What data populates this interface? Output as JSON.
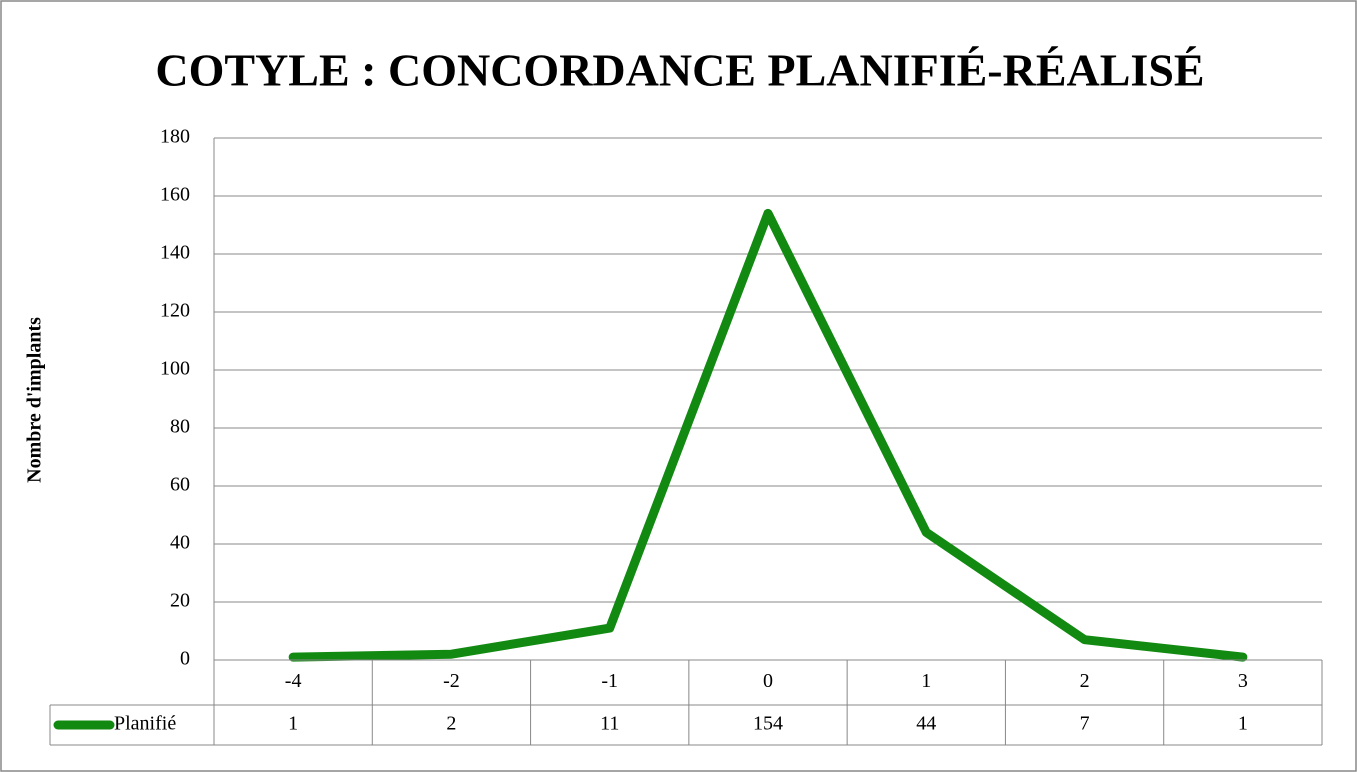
{
  "chart_data": {
    "type": "line",
    "title": "COTYLE : CONCORDANCE PLANIFIÉ-RÉALISÉ",
    "y_label": "Nombre d'implants",
    "categories": [
      "-4",
      "-2",
      "-1",
      "0",
      "1",
      "2",
      "3"
    ],
    "series": [
      {
        "name": "Planifié",
        "color": "#128a12",
        "values": [
          1,
          2,
          11,
          154,
          44,
          7,
          1
        ]
      }
    ],
    "ylim": [
      0,
      180
    ],
    "yticks": [
      0,
      20,
      40,
      60,
      80,
      100,
      120,
      140,
      160,
      180
    ],
    "grid": true,
    "data_table": true
  }
}
